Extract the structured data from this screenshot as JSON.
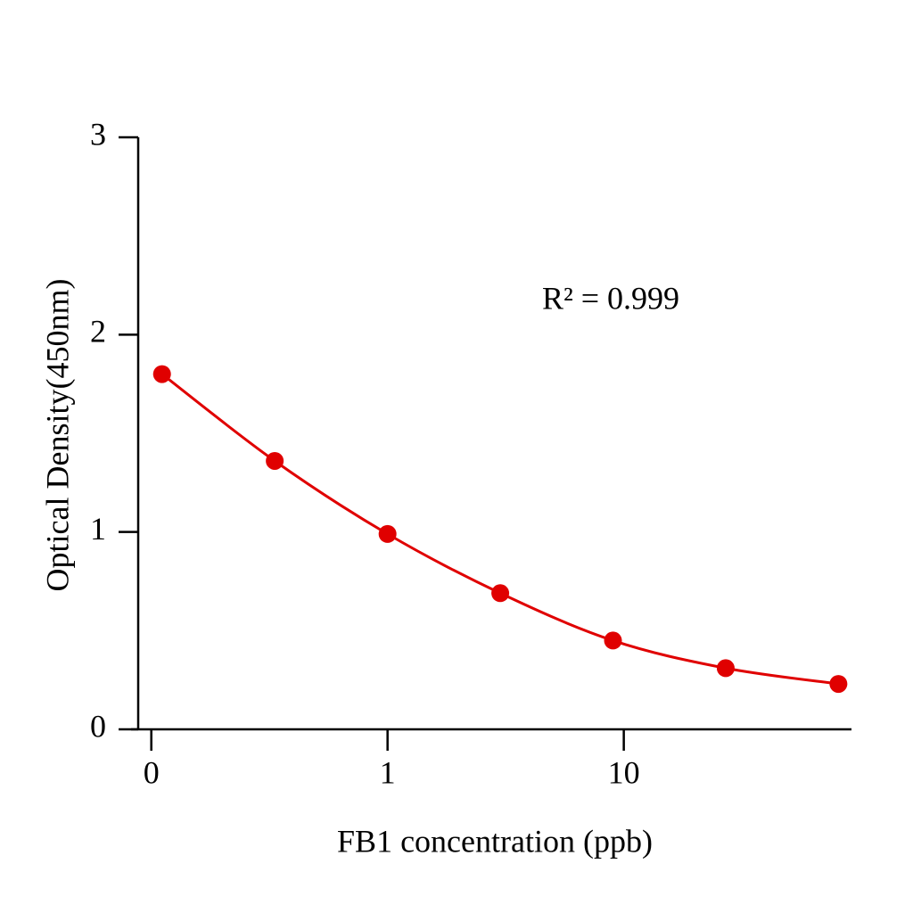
{
  "chart_data": {
    "type": "line",
    "x_label": "FB1 concentration (ppb)",
    "y_label": "Optical Density(450nm)",
    "annotation": "R² = 0.999",
    "x": [
      0.111,
      0.333,
      1,
      3,
      9,
      27,
      81
    ],
    "series": [
      {
        "color": "#e00000",
        "values": [
          1.8,
          1.36,
          0.99,
          0.69,
          0.45,
          0.31,
          0.23
        ]
      }
    ],
    "x_log": true,
    "xlim": [
      0.088,
      92
    ],
    "xticks": [
      {
        "value": 0.1,
        "label": "0"
      },
      1,
      10
    ],
    "ylim": [
      0,
      3
    ],
    "yticks": [
      0,
      1,
      2,
      3
    ],
    "grid": false
  }
}
